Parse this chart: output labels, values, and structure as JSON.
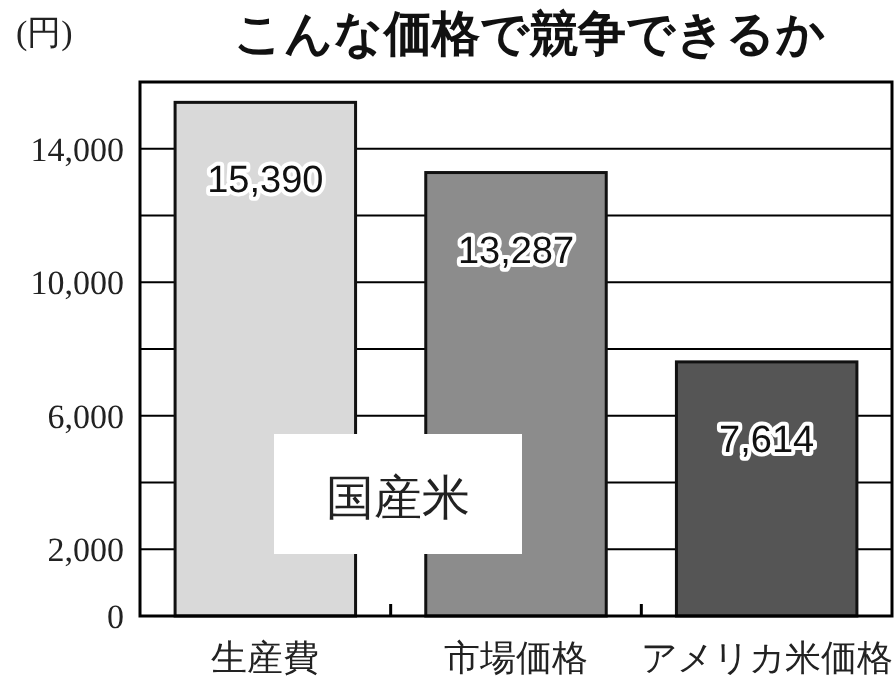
{
  "chart_data": {
    "type": "bar",
    "title": "こんな価格で競争できるか",
    "ylabel": "(円)",
    "categories": [
      "生産費",
      "市場価格",
      "アメリカ米価格"
    ],
    "values": [
      15390,
      13287,
      7614
    ],
    "colors": [
      "#d9d9d9",
      "#8c8c8c",
      "#555555"
    ],
    "ylim": [
      0,
      16000
    ],
    "value_labels": [
      "15,390",
      "13,287",
      "7,614"
    ],
    "yticks": [
      0,
      {
        "value": 2000,
        "label": "2,000"
      },
      {
        "value": 4000,
        "label": null
      },
      {
        "value": 6000,
        "label": "6,000"
      },
      {
        "value": 8000,
        "label": null
      },
      {
        "value": 10000,
        "label": "10,000"
      },
      {
        "value": 12000,
        "label": null
      },
      {
        "value": 14000,
        "label": "14,000"
      }
    ],
    "grid": "y",
    "annotations": [
      "国産米"
    ]
  }
}
